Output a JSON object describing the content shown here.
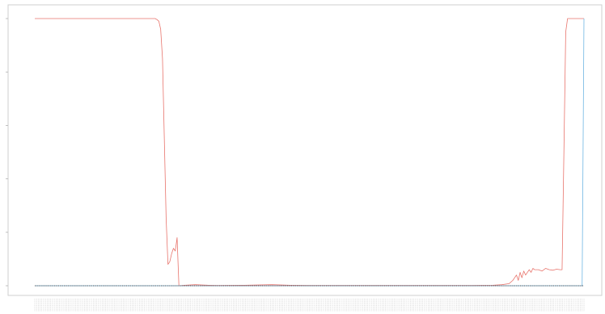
{
  "chart_data": {
    "type": "line",
    "title": "",
    "xlabel": "",
    "ylabel": "",
    "ylim": [
      0,
      1
    ],
    "grid": false,
    "legend": "none",
    "x_points": 311,
    "series": [
      {
        "color": "#e8746c",
        "keypoints": [
          [
            0,
            1.0
          ],
          [
            66,
            1.0
          ],
          [
            67,
            0.996
          ],
          [
            68,
            0.99
          ],
          [
            69,
            0.96
          ],
          [
            70,
            0.85
          ],
          [
            71,
            0.55
          ],
          [
            72,
            0.25
          ],
          [
            73,
            0.08
          ],
          [
            74,
            0.09
          ],
          [
            75,
            0.12
          ],
          [
            76,
            0.14
          ],
          [
            77,
            0.13
          ],
          [
            78,
            0.18
          ],
          [
            79,
            0.0
          ],
          [
            82,
            0.002
          ],
          [
            88,
            0.004
          ],
          [
            95,
            0.002
          ],
          [
            100,
            0.001
          ],
          [
            115,
            0.002
          ],
          [
            130,
            0.004
          ],
          [
            140,
            0.002
          ],
          [
            150,
            0.001
          ],
          [
            180,
            0.001
          ],
          [
            200,
            0.001
          ],
          [
            240,
            0.001
          ],
          [
            251,
            0.002
          ],
          [
            256,
            0.004
          ],
          [
            260,
            0.008
          ],
          [
            262,
            0.02
          ],
          [
            264,
            0.04
          ],
          [
            265,
            0.02
          ],
          [
            266,
            0.05
          ],
          [
            267,
            0.03
          ],
          [
            268,
            0.055
          ],
          [
            269,
            0.04
          ],
          [
            270,
            0.05
          ],
          [
            271,
            0.06
          ],
          [
            272,
            0.05
          ],
          [
            273,
            0.065
          ],
          [
            274,
            0.06
          ],
          [
            276,
            0.06
          ],
          [
            278,
            0.055
          ],
          [
            280,
            0.065
          ],
          [
            282,
            0.06
          ],
          [
            284,
            0.058
          ],
          [
            286,
            0.062
          ],
          [
            288,
            0.06
          ],
          [
            289,
            0.06
          ],
          [
            290,
            0.5
          ],
          [
            291,
            0.95
          ],
          [
            292,
            1.0
          ],
          [
            301,
            1.0
          ]
        ]
      },
      {
        "color": "#6fb6e3",
        "keypoints": [
          [
            0,
            0.0
          ],
          [
            300,
            0.0
          ],
          [
            301,
            1.0
          ]
        ]
      },
      {
        "color": "#4d4d4d",
        "keypoints": [
          [
            0,
            0.0
          ],
          [
            301,
            0.0
          ]
        ]
      }
    ]
  }
}
